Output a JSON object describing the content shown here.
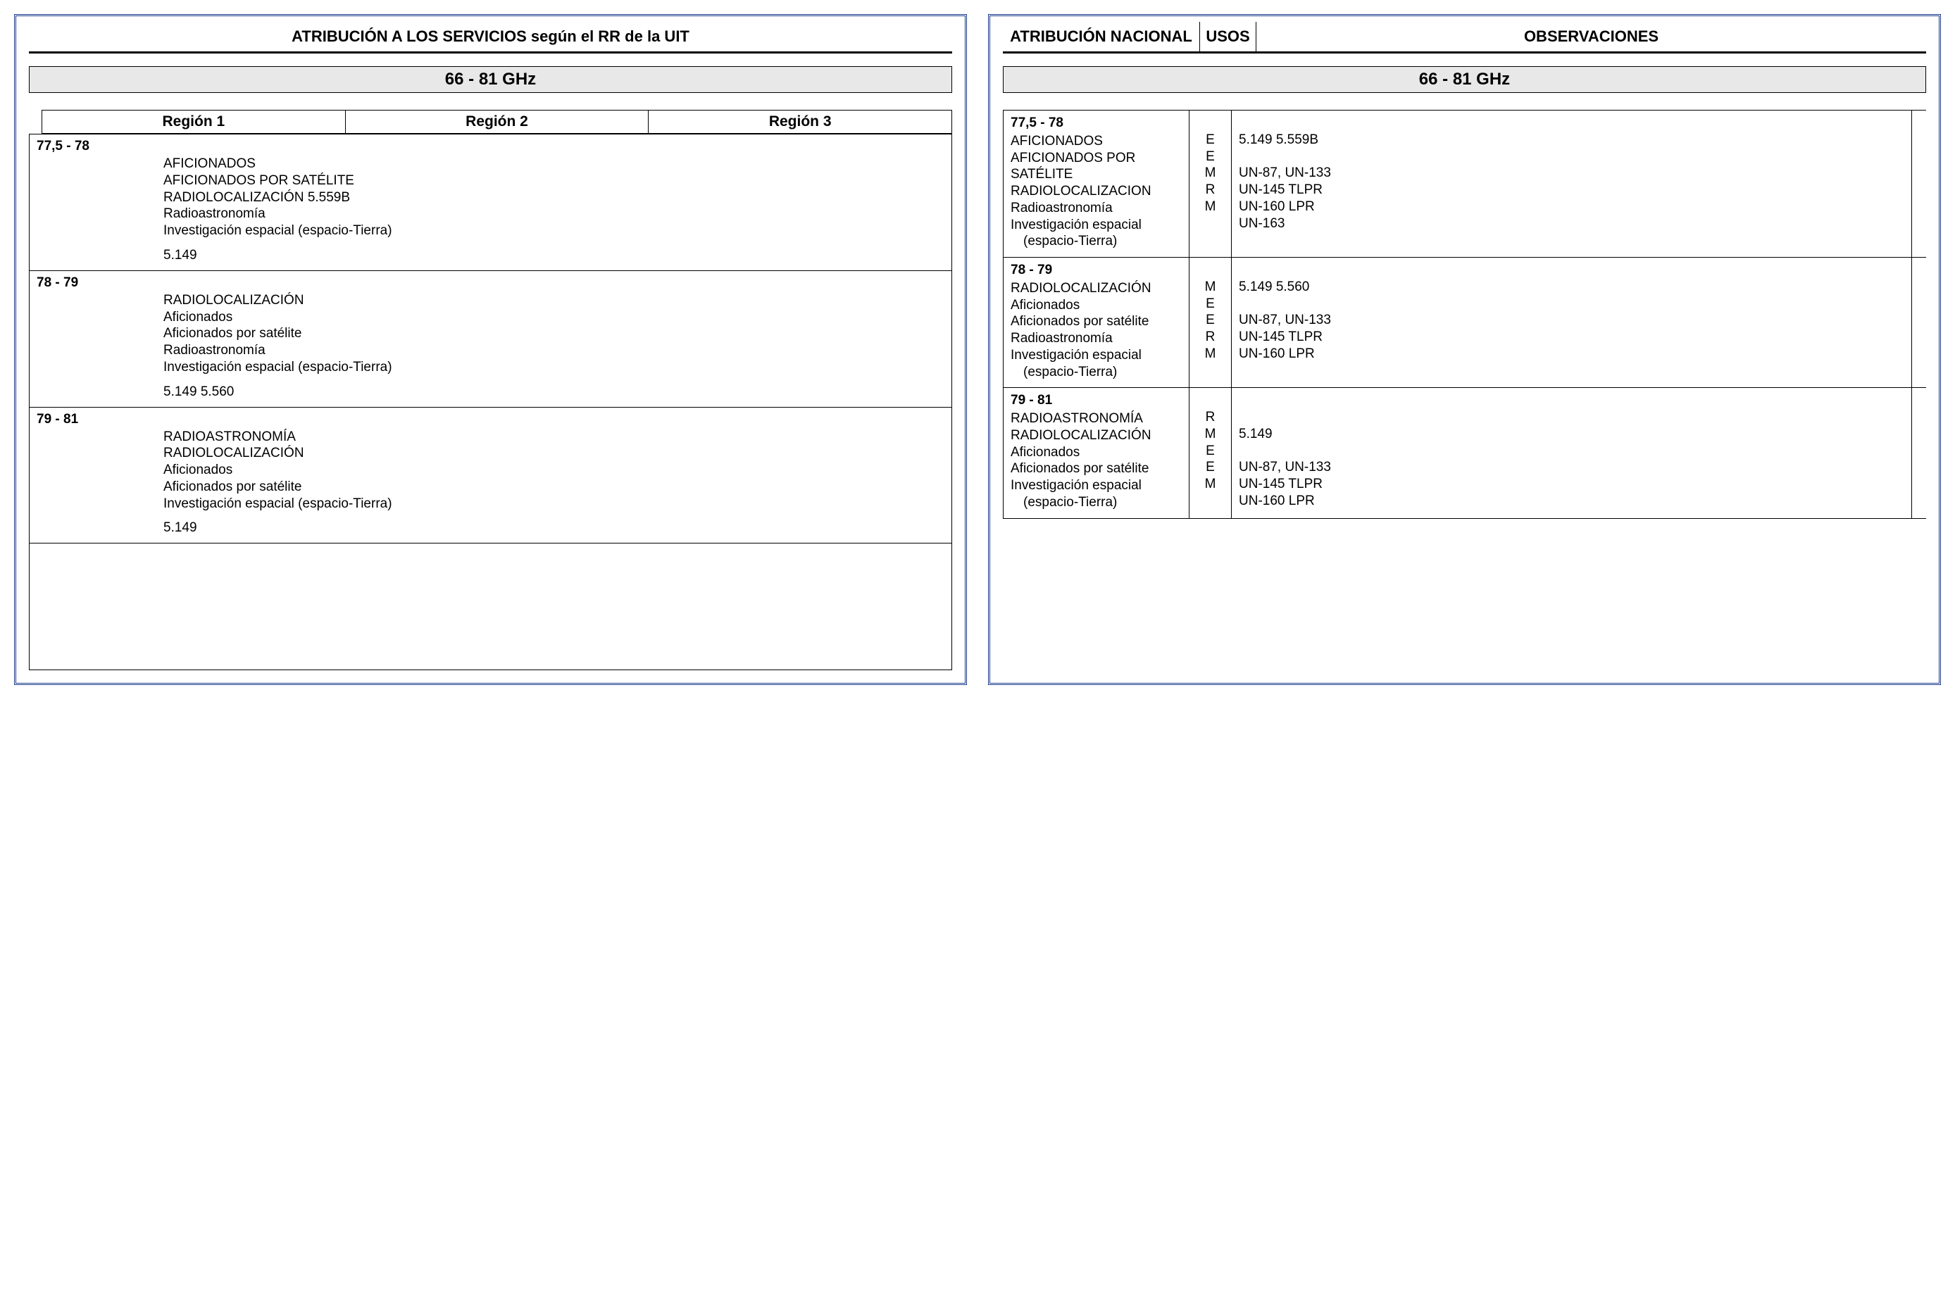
{
  "colors": {
    "border": "#1a3a8a",
    "band_bg": "#e8e8e8",
    "text": "#000000"
  },
  "left": {
    "header": "ATRIBUCIÓN A LOS SERVICIOS según el RR de la UIT",
    "band": "66 - 81  GHz",
    "regions": [
      "Región 1",
      "Región 2",
      "Región 3"
    ],
    "blocks": [
      {
        "freq": "77,5 - 78",
        "services": [
          "AFICIONADOS",
          "AFICIONADOS POR SATÉLITE",
          "RADIOLOCALIZACIÓN 5.559B",
          "Radioastronomía",
          "Investigación espacial (espacio-Tierra)"
        ],
        "footnote": "5.149"
      },
      {
        "freq": "78 - 79",
        "services": [
          "RADIOLOCALIZACIÓN",
          "Aficionados",
          "Aficionados por satélite",
          "Radioastronomía",
          "Investigación espacial (espacio-Tierra)"
        ],
        "footnote": "5.149 5.560"
      },
      {
        "freq": "79 - 81",
        "services": [
          "RADIOASTRONOMÍA",
          "RADIOLOCALIZACIÓN",
          "Aficionados",
          "Aficionados por satélite",
          "Investigación espacial (espacio-Tierra)"
        ],
        "footnote": "5.149"
      }
    ]
  },
  "right": {
    "headers": {
      "h1": "ATRIBUCIÓN NACIONAL",
      "h2": "USOS",
      "h3": "OBSERVACIONES"
    },
    "band": "66 - 81  GHz",
    "rows": [
      {
        "freq": "77,5 - 78",
        "nat": [
          "AFICIONADOS",
          "AFICIONADOS POR SATÉLITE",
          "RADIOLOCALIZACION",
          "Radioastronomía",
          "Investigación espacial",
          "   (espacio-Tierra)"
        ],
        "usos": [
          "",
          "E",
          "E",
          "M",
          "R",
          "M"
        ],
        "obs": [
          "",
          "5.149  5.559B",
          "",
          "UN-87, UN-133",
          "UN-145 TLPR",
          "UN-160 LPR",
          "UN-163"
        ]
      },
      {
        "freq": "78 - 79",
        "nat": [
          "RADIOLOCALIZACIÓN",
          "Aficionados",
          "Aficionados por satélite",
          "Radioastronomía",
          "Investigación espacial",
          "   (espacio-Tierra)"
        ],
        "usos": [
          "",
          "M",
          "E",
          "E",
          "R",
          "M"
        ],
        "obs": [
          "",
          "5.149 5.560",
          "",
          "UN-87, UN-133",
          "UN-145 TLPR",
          "UN-160 LPR"
        ]
      },
      {
        "freq": "79 - 81",
        "nat": [
          "RADIOASTRONOMÍA",
          "RADIOLOCALIZACIÓN",
          "Aficionados",
          "Aficionados por satélite",
          "Investigación espacial",
          "   (espacio-Tierra)"
        ],
        "usos": [
          "",
          "R",
          "M",
          "E",
          "E",
          "M"
        ],
        "obs": [
          "",
          "",
          "5.149",
          "",
          "UN-87, UN-133",
          "UN-145 TLPR",
          "UN-160 LPR"
        ]
      }
    ]
  }
}
